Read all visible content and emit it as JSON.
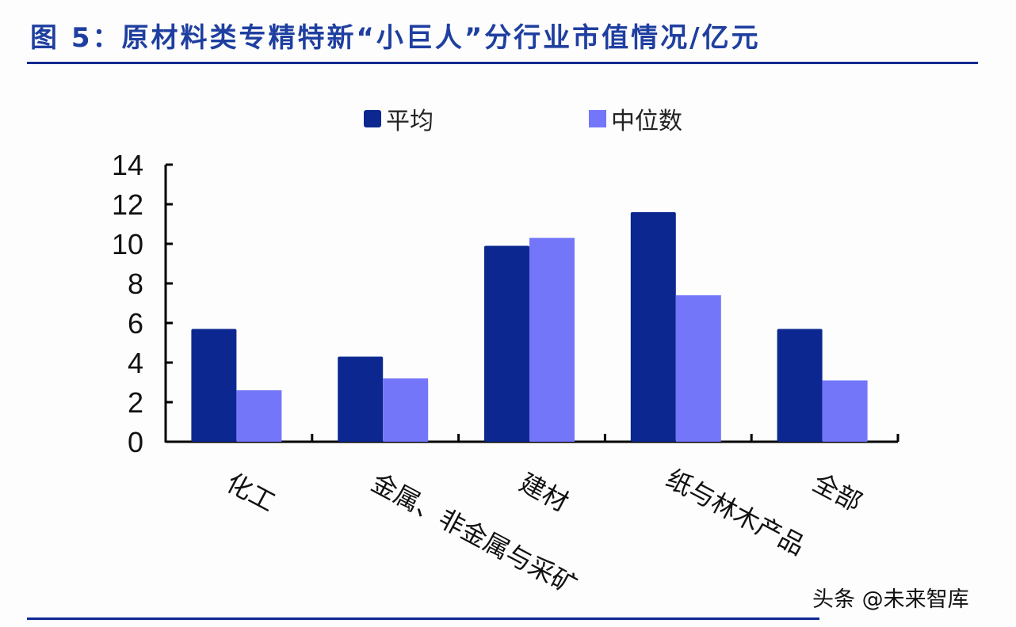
{
  "header": {
    "title": "图 5：原材料类专精特新“小巨人”分行业市值情况/亿元"
  },
  "legend": {
    "items": [
      {
        "label": "平均",
        "color": "#0c2890"
      },
      {
        "label": "中位数",
        "color": "#7476fa"
      }
    ]
  },
  "watermark": "头条 @未来智库",
  "chart_data": {
    "type": "bar",
    "title": "原材料类专精特新“小巨人”分行业市值情况/亿元",
    "xlabel": "",
    "ylabel": "",
    "ylim": [
      0,
      14
    ],
    "yticks": [
      0,
      2,
      4,
      6,
      8,
      10,
      12,
      14
    ],
    "grid": false,
    "legend_position": "top",
    "categories": [
      "化工",
      "金属、非金属与采矿",
      "建材",
      "纸与林木产品",
      "全部"
    ],
    "series": [
      {
        "name": "平均",
        "color": "#0c2890",
        "values": [
          5.7,
          4.3,
          9.9,
          11.6,
          5.7
        ]
      },
      {
        "name": "中位数",
        "color": "#7476fa",
        "values": [
          2.6,
          3.2,
          10.3,
          7.4,
          3.1
        ]
      }
    ]
  }
}
